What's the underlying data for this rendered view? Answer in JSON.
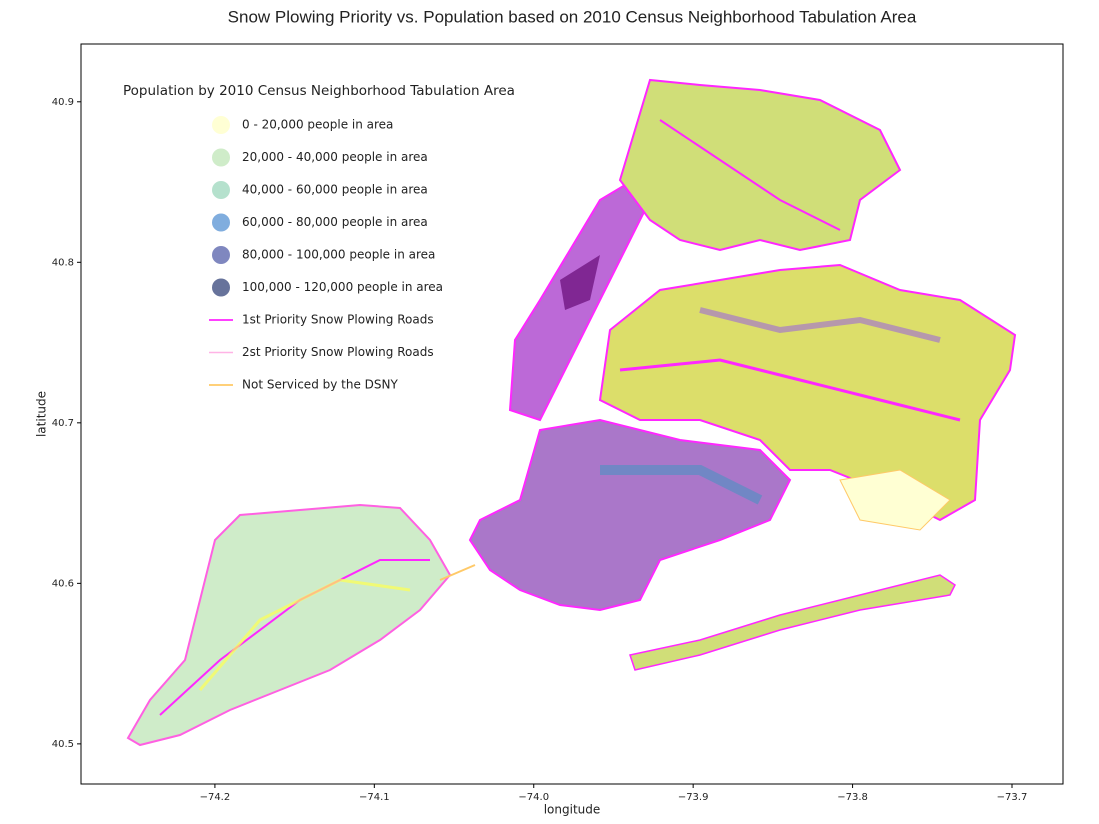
{
  "chart_data": {
    "type": "map",
    "title": "Snow Plowing Priority vs. Population based on 2010 Census Neighborhood Tabulation Area",
    "x_label": "longitude",
    "y_label": "latitude",
    "xlim": [
      -74.284,
      -73.668
    ],
    "ylim": [
      40.475,
      40.936
    ],
    "xticks": [
      {
        "value": -74.2,
        "label": "−74.2"
      },
      {
        "value": -74.1,
        "label": "−74.1"
      },
      {
        "value": -74.0,
        "label": "−74.0"
      },
      {
        "value": -73.9,
        "label": "−73.9"
      },
      {
        "value": -73.8,
        "label": "−73.8"
      },
      {
        "value": -73.7,
        "label": "−73.7"
      }
    ],
    "yticks": [
      40.5,
      40.6,
      40.7,
      40.8,
      40.9
    ],
    "legend_title": "Population by 2010 Census Neighborhood Tabulation Area",
    "legend": [
      {
        "label": "0 - 20,000 people in area",
        "kind": "marker",
        "color": "#ffffcc"
      },
      {
        "label": "20,000 - 40,000 people in area",
        "kind": "marker",
        "color": "#c7e9c0"
      },
      {
        "label": "40,000 - 60,000 people in area",
        "kind": "marker",
        "color": "#a8dcc4"
      },
      {
        "label": "60,000 - 80,000 people in area",
        "kind": "marker",
        "color": "#6a9fd8"
      },
      {
        "label": "80,000 - 100,000 people in area",
        "kind": "marker",
        "color": "#6872b4"
      },
      {
        "label": "100,000 - 120,000 people in area",
        "kind": "marker",
        "color": "#4c5a8a"
      },
      {
        "label": "1st Priority Snow Plowing Roads",
        "kind": "line",
        "color": "#ff00ff"
      },
      {
        "label": "2st Priority Snow Plowing Roads",
        "kind": "line",
        "color": "#ffb3e6"
      },
      {
        "label": "Not Serviced by the DSNY",
        "kind": "line",
        "color": "#ffc04d"
      }
    ]
  }
}
